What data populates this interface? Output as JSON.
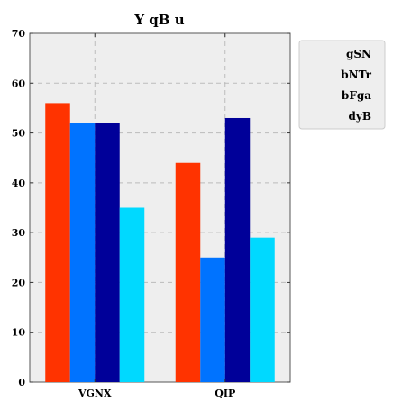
{
  "chart_data": {
    "type": "bar",
    "title": "Y qB u",
    "xlabel": "",
    "ylabel": "",
    "categories": [
      "VGNX",
      "QIP"
    ],
    "series": [
      {
        "name": "gSN",
        "values": [
          56,
          44
        ],
        "color": "#ff3300"
      },
      {
        "name": "bNTr",
        "values": [
          52,
          25
        ],
        "color": "#0073ff"
      },
      {
        "name": "bFga",
        "values": [
          52,
          53
        ],
        "color": "#000099"
      },
      {
        "name": "dyB",
        "values": [
          35,
          29
        ],
        "color": "#00d9ff"
      }
    ],
    "ylim": [
      0,
      70
    ],
    "yticks": [
      0,
      10,
      20,
      30,
      40,
      50,
      60,
      70
    ],
    "grid": true,
    "legend": "top-right",
    "plot_background": "#eeeeee"
  }
}
